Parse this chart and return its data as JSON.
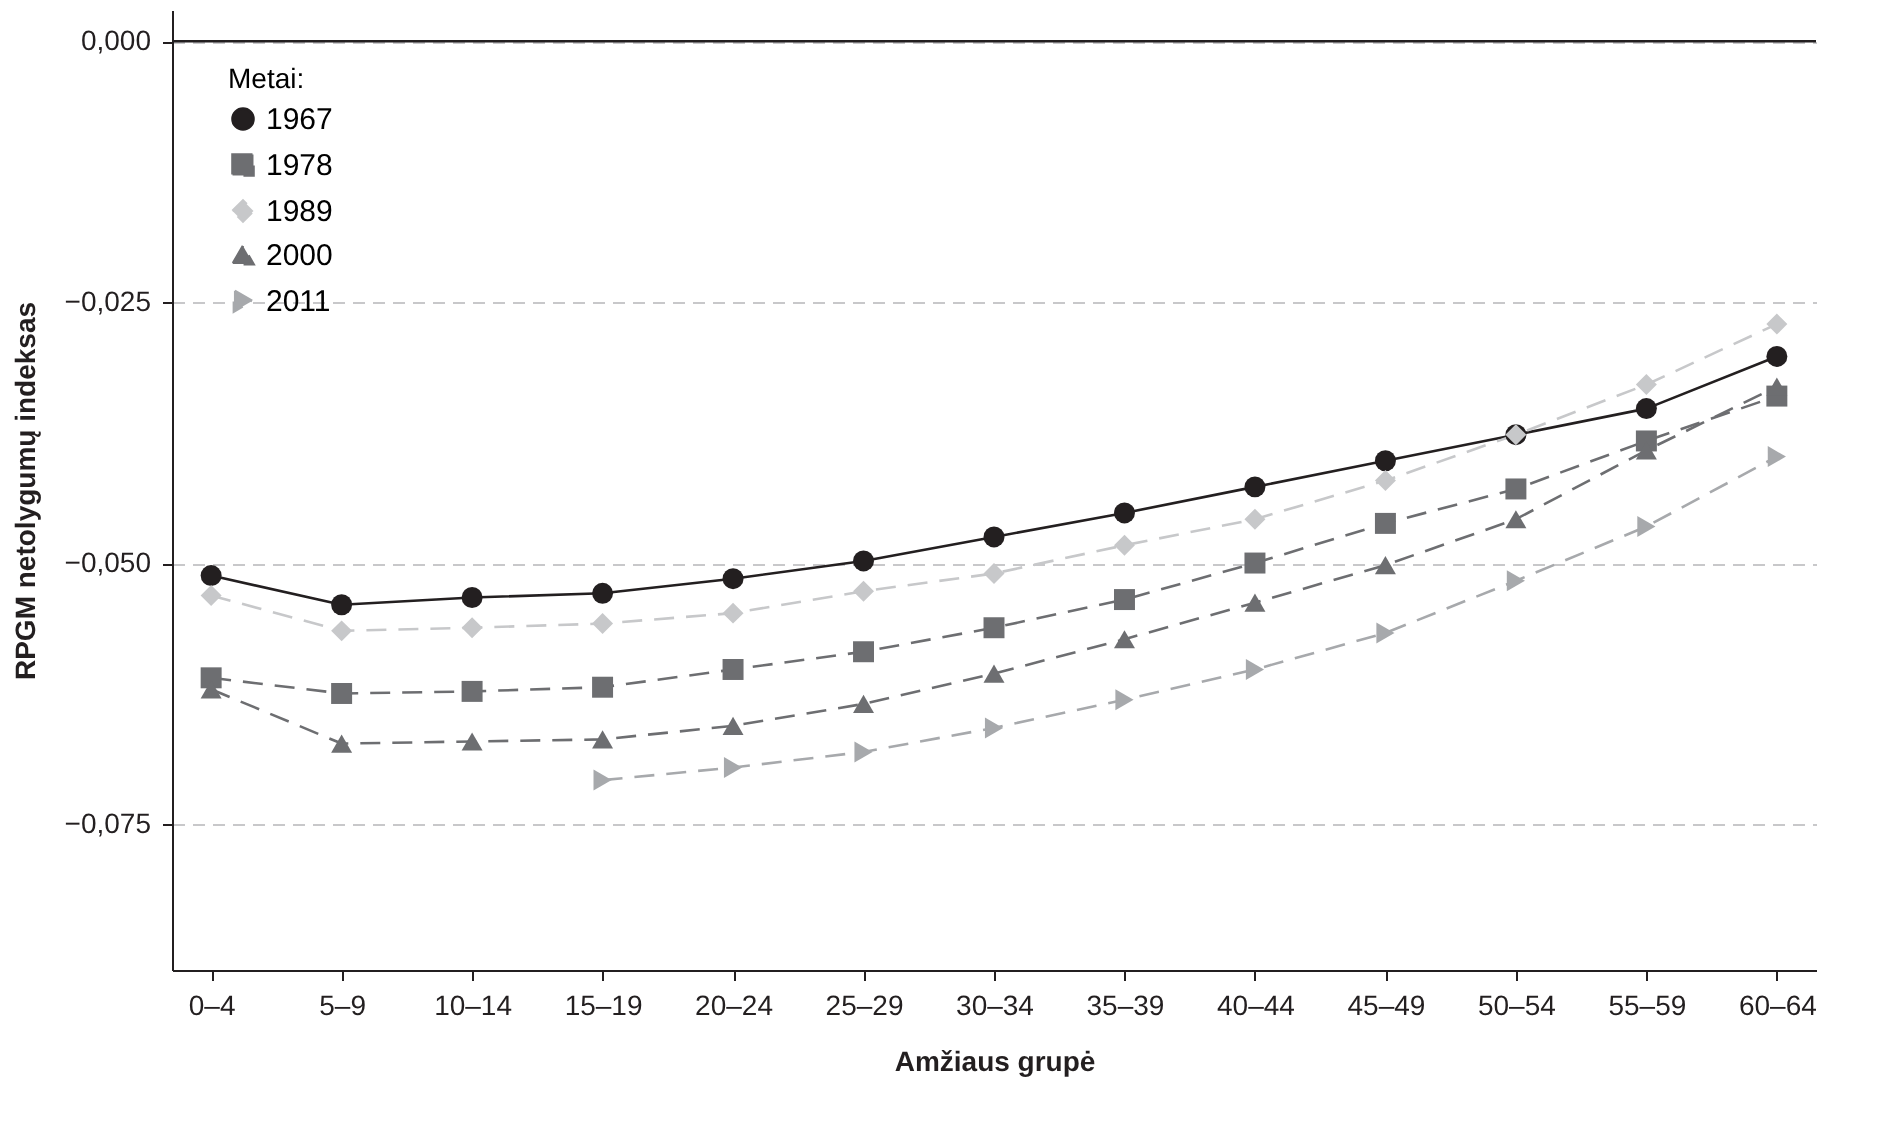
{
  "chart_data": {
    "type": "line",
    "xlabel": "Amžiaus grupė",
    "ylabel": "RPGM netolygumų indeksas",
    "legend_title": "Metai:",
    "legend": "top left",
    "grid": "y",
    "categories": [
      "0–4",
      "5–9",
      "10–14",
      "15–19",
      "20–24",
      "25–29",
      "30–34",
      "35–39",
      "40–44",
      "45–49",
      "50–54",
      "55–59",
      "60–64"
    ],
    "ylim": [
      -0.089,
      0.003
    ],
    "yticks": [
      {
        "value": 0,
        "label": "0,000"
      },
      {
        "value": -0.025,
        "label": "−0,025"
      },
      {
        "value": -0.05,
        "label": "−0,050"
      },
      {
        "value": -0.075,
        "label": "−0,075"
      }
    ],
    "ref_lines": [
      {
        "axis": "y",
        "value": 0,
        "color": "#231f20",
        "line_style": "solid"
      }
    ],
    "series": [
      {
        "name": "1967",
        "color": "#231f20",
        "marker": "circle",
        "line_style": "solid",
        "values": [
          -0.0512,
          -0.054,
          -0.0533,
          -0.0529,
          -0.0515,
          -0.0498,
          -0.0475,
          -0.0452,
          -0.0427,
          -0.0402,
          -0.0377,
          -0.0352,
          -0.0302
        ]
      },
      {
        "name": "1978",
        "color": "#6d6e71",
        "marker": "square",
        "line_style": "dashed",
        "values": [
          -0.061,
          -0.0625,
          -0.0623,
          -0.0619,
          -0.0602,
          -0.0585,
          -0.0562,
          -0.0535,
          -0.05,
          -0.0462,
          -0.0429,
          -0.0383,
          -0.034
        ]
      },
      {
        "name": "1989",
        "color": "#c7c8ca",
        "marker": "diamond",
        "line_style": "dashed",
        "values": [
          -0.0531,
          -0.0565,
          -0.0562,
          -0.0558,
          -0.0548,
          -0.0527,
          -0.051,
          -0.0483,
          -0.0458,
          -0.0421,
          -0.0377,
          -0.0329,
          -0.0271
        ]
      },
      {
        "name": "2000",
        "color": "#6d6e71",
        "marker": "triangle",
        "line_style": "dashed",
        "values": [
          -0.0621,
          -0.0673,
          -0.0671,
          -0.0669,
          -0.0656,
          -0.0635,
          -0.0606,
          -0.0573,
          -0.0538,
          -0.0502,
          -0.0458,
          -0.0392,
          -0.0331
        ]
      },
      {
        "name": "2011",
        "color": "#a7a9ac",
        "marker": "triangle-right",
        "line_style": "dashed",
        "values": [
          null,
          null,
          null,
          -0.0708,
          -0.0696,
          -0.0681,
          -0.0658,
          -0.0631,
          -0.0602,
          -0.0567,
          -0.0517,
          -0.0465,
          -0.0398
        ]
      }
    ]
  }
}
